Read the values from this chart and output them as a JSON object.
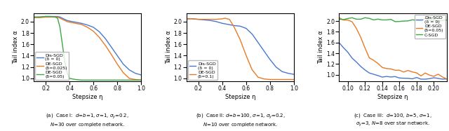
{
  "fig1": {
    "xlabel": "Stepsize η",
    "ylabel": "Tail index α",
    "xlim": [
      0.1,
      1.0
    ],
    "ylim": [
      0.95,
      2.15
    ],
    "yticks": [
      1.0,
      1.2,
      1.4,
      1.6,
      1.8,
      2.0
    ],
    "xticks": [
      0.2,
      0.4,
      0.6,
      0.8,
      1.0
    ],
    "lines": [
      {
        "label": "Dis-SGD\n(δ = 0)",
        "color": "#4878cf",
        "x": [
          0.1,
          0.15,
          0.2,
          0.25,
          0.3,
          0.32,
          0.34,
          0.36,
          0.38,
          0.4,
          0.45,
          0.5,
          0.55,
          0.6,
          0.65,
          0.7,
          0.75,
          0.8,
          0.85,
          0.9,
          0.95,
          1.0
        ],
        "y": [
          2.08,
          2.08,
          2.09,
          2.09,
          2.09,
          2.08,
          2.06,
          2.04,
          2.02,
          2.01,
          1.99,
          1.97,
          1.94,
          1.9,
          1.82,
          1.7,
          1.55,
          1.4,
          1.25,
          1.15,
          1.09,
          1.06
        ]
      },
      {
        "label": "DE-SGD\n(δ=0.025)",
        "color": "#e87a25",
        "x": [
          0.1,
          0.15,
          0.2,
          0.25,
          0.3,
          0.32,
          0.34,
          0.36,
          0.38,
          0.4,
          0.45,
          0.5,
          0.55,
          0.6,
          0.65,
          0.7,
          0.75,
          0.8,
          0.85,
          0.9,
          0.95,
          1.0
        ],
        "y": [
          2.07,
          2.07,
          2.08,
          2.08,
          2.08,
          2.06,
          2.04,
          2.02,
          2.0,
          1.99,
          1.97,
          1.95,
          1.9,
          1.83,
          1.72,
          1.58,
          1.42,
          1.25,
          1.1,
          1.0,
          0.98,
          0.97
        ]
      },
      {
        "label": "DE-SGD\n(δ=0.05)",
        "color": "#3aa843",
        "x": [
          0.1,
          0.15,
          0.2,
          0.25,
          0.28,
          0.3,
          0.32,
          0.34,
          0.36,
          0.38,
          0.4,
          0.45,
          0.5,
          0.55,
          0.6,
          0.65,
          0.7,
          0.75,
          0.8,
          0.85,
          0.9,
          0.95,
          1.0
        ],
        "y": [
          2.08,
          2.08,
          2.09,
          2.09,
          2.08,
          2.06,
          1.9,
          1.6,
          1.3,
          1.1,
          1.0,
          0.98,
          0.97,
          0.97,
          0.97,
          0.97,
          0.97,
          0.97,
          0.97,
          0.97,
          0.97,
          0.97,
          0.97
        ]
      }
    ],
    "legend_loc": "lower left",
    "caption": "(a)  Case I:  $d$=$b$=1, $\\sigma$=1, $\\sigma_y$=0.2,\n$N$=30 over complete network."
  },
  "fig2": {
    "xlabel": "Stepsize η",
    "ylabel": "Tail index α",
    "xlim": [
      0.1,
      1.0
    ],
    "ylim": [
      0.95,
      2.15
    ],
    "yticks": [
      1.0,
      1.2,
      1.4,
      1.6,
      1.8,
      2.0
    ],
    "xticks": [
      0.2,
      0.4,
      0.6,
      0.8,
      1.0
    ],
    "lines": [
      {
        "label": "Dis-SGD\n(δ = 0)",
        "color": "#4878cf",
        "x": [
          0.1,
          0.15,
          0.2,
          0.25,
          0.3,
          0.35,
          0.4,
          0.45,
          0.5,
          0.55,
          0.6,
          0.65,
          0.7,
          0.75,
          0.8,
          0.85,
          0.9,
          0.95,
          1.0
        ],
        "y": [
          2.05,
          2.05,
          2.04,
          2.03,
          2.02,
          2.0,
          1.97,
          1.95,
          1.93,
          1.92,
          1.88,
          1.78,
          1.63,
          1.48,
          1.33,
          1.2,
          1.12,
          1.09,
          1.07
        ]
      },
      {
        "label": "DE-SGD\n(δ=0.1)",
        "color": "#e87a25",
        "x": [
          0.1,
          0.15,
          0.2,
          0.25,
          0.3,
          0.35,
          0.4,
          0.42,
          0.44,
          0.46,
          0.5,
          0.55,
          0.6,
          0.65,
          0.7,
          0.75,
          0.8,
          0.85,
          0.9,
          0.95,
          1.0
        ],
        "y": [
          2.05,
          2.05,
          2.04,
          2.04,
          2.04,
          2.04,
          2.05,
          2.06,
          2.05,
          2.04,
          1.9,
          1.68,
          1.4,
          1.15,
          1.02,
          0.99,
          0.98,
          0.98,
          0.98,
          0.98,
          0.98
        ]
      }
    ],
    "legend_loc": "lower left",
    "caption": "(b)  Case II: $d$=$b$=100, $\\sigma$=1, $\\sigma_y$=0.2,\n$N$=10 over complete network."
  },
  "fig3": {
    "xlabel": "Stepsize η",
    "ylabel": "Tail index α",
    "xlim": [
      0.09,
      0.215
    ],
    "ylim": [
      0.88,
      2.15
    ],
    "yticks": [
      1.0,
      1.2,
      1.4,
      1.6,
      1.8,
      2.0
    ],
    "xticks": [
      0.1,
      0.12,
      0.14,
      0.16,
      0.18,
      0.2
    ],
    "lines": [
      {
        "label": "Dis-SGD\n(δ = 0)",
        "color": "#4878cf",
        "x": [
          0.09,
          0.095,
          0.1,
          0.105,
          0.11,
          0.115,
          0.12,
          0.125,
          0.13,
          0.135,
          0.14,
          0.145,
          0.15,
          0.155,
          0.16,
          0.165,
          0.17,
          0.175,
          0.18,
          0.185,
          0.19,
          0.195,
          0.2,
          0.205,
          0.21,
          0.215
        ],
        "y": [
          1.58,
          1.5,
          1.42,
          1.33,
          1.24,
          1.16,
          1.09,
          1.04,
          1.01,
          0.99,
          0.97,
          0.96,
          0.95,
          0.95,
          0.94,
          0.94,
          0.94,
          0.94,
          0.94,
          0.93,
          0.93,
          0.93,
          0.93,
          0.93,
          0.93,
          0.93
        ]
      },
      {
        "label": "DE-SGD\n(δ=0.05)",
        "color": "#e87a25",
        "x": [
          0.09,
          0.095,
          0.1,
          0.105,
          0.11,
          0.115,
          0.12,
          0.125,
          0.13,
          0.135,
          0.14,
          0.145,
          0.15,
          0.155,
          0.16,
          0.165,
          0.17,
          0.175,
          0.18,
          0.185,
          0.19,
          0.195,
          0.2,
          0.205,
          0.21,
          0.215
        ],
        "y": [
          2.03,
          2.03,
          2.02,
          1.98,
          1.88,
          1.7,
          1.5,
          1.35,
          1.25,
          1.2,
          1.15,
          1.12,
          1.1,
          1.09,
          1.09,
          1.08,
          1.07,
          1.05,
          1.03,
          1.01,
          1.0,
          0.99,
          0.98,
          0.97,
          0.96,
          0.95
        ]
      },
      {
        "label": "C-SGD",
        "color": "#3aa843",
        "x": [
          0.09,
          0.095,
          0.1,
          0.105,
          0.11,
          0.115,
          0.12,
          0.125,
          0.13,
          0.135,
          0.14,
          0.145,
          0.15,
          0.155,
          0.16,
          0.165,
          0.17,
          0.175,
          0.18,
          0.185,
          0.19,
          0.195,
          0.2,
          0.205,
          0.21,
          0.215
        ],
        "y": [
          2.03,
          2.03,
          2.04,
          2.04,
          2.04,
          2.04,
          2.04,
          2.04,
          2.03,
          2.03,
          2.03,
          2.03,
          2.03,
          2.02,
          2.02,
          2.01,
          2.02,
          2.02,
          2.03,
          2.03,
          2.03,
          2.02,
          2.02,
          2.02,
          2.02,
          2.02
        ]
      }
    ],
    "legend_loc": "upper right",
    "caption": "(c)  Case III:  $d$=100, $b$=5, $\\sigma$=1,\n$\\sigma_y$=3, $N$=8 over star network."
  }
}
